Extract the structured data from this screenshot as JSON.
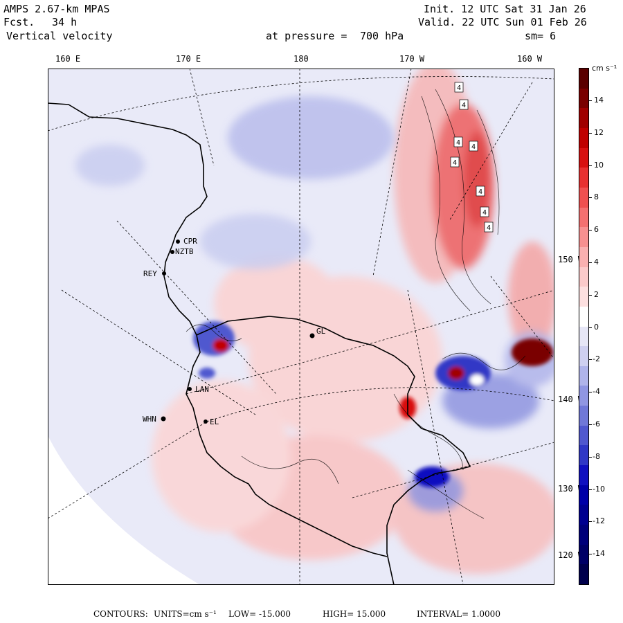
{
  "header": {
    "model": "AMPS 2.67-km MPAS",
    "fcst_label": "Fcst.",
    "fcst_value": "34 h",
    "field": "Vertical velocity",
    "init": "Init. 12 UTC Sat 31 Jan 26",
    "valid": "Valid. 22 UTC Sun 01 Feb 26",
    "level_label": "at pressure =",
    "level_value": "700 hPa",
    "smoothing": "sm= 6"
  },
  "top_lon_labels": [
    "160 E",
    "170 E",
    "180",
    "170 W",
    "160 W"
  ],
  "right_lat_labels": [
    "150 W",
    "140 W",
    "130 W",
    "120 W"
  ],
  "stations": [
    "CPR",
    "NZTB",
    "REY",
    "GL",
    "LAN",
    "WHN",
    "EL"
  ],
  "contour_boxes": [
    "4",
    "4",
    "4",
    "4",
    "4",
    "4",
    "4",
    "4"
  ],
  "colorbar": {
    "units": "cm s⁻¹",
    "labels": [
      "14",
      "12",
      "10",
      "8",
      "6",
      "4",
      "2",
      "0",
      "-2",
      "-4",
      "-6",
      "-8",
      "-10",
      "-12",
      "-14"
    ],
    "colors": [
      "#5a0000",
      "#7a0000",
      "#a00000",
      "#c00000",
      "#d81010",
      "#e83030",
      "#f05050",
      "#f47070",
      "#f79090",
      "#f9b0b0",
      "#fbcaca",
      "#fde0e0",
      "#ffffff",
      "#e6e6f6",
      "#cfd0f0",
      "#b0b4ea",
      "#9096e2",
      "#7078d8",
      "#5058cf",
      "#3038c6",
      "#1010c0",
      "#0000a8",
      "#000090",
      "#00007a",
      "#000066",
      "#00004c"
    ]
  },
  "footer": {
    "label": "CONTOURS:",
    "units": "UNITS=cm s⁻¹",
    "low": "LOW= -15.000",
    "high": "HIGH= 15.000",
    "interval": "INTERVAL= 1.0000"
  }
}
